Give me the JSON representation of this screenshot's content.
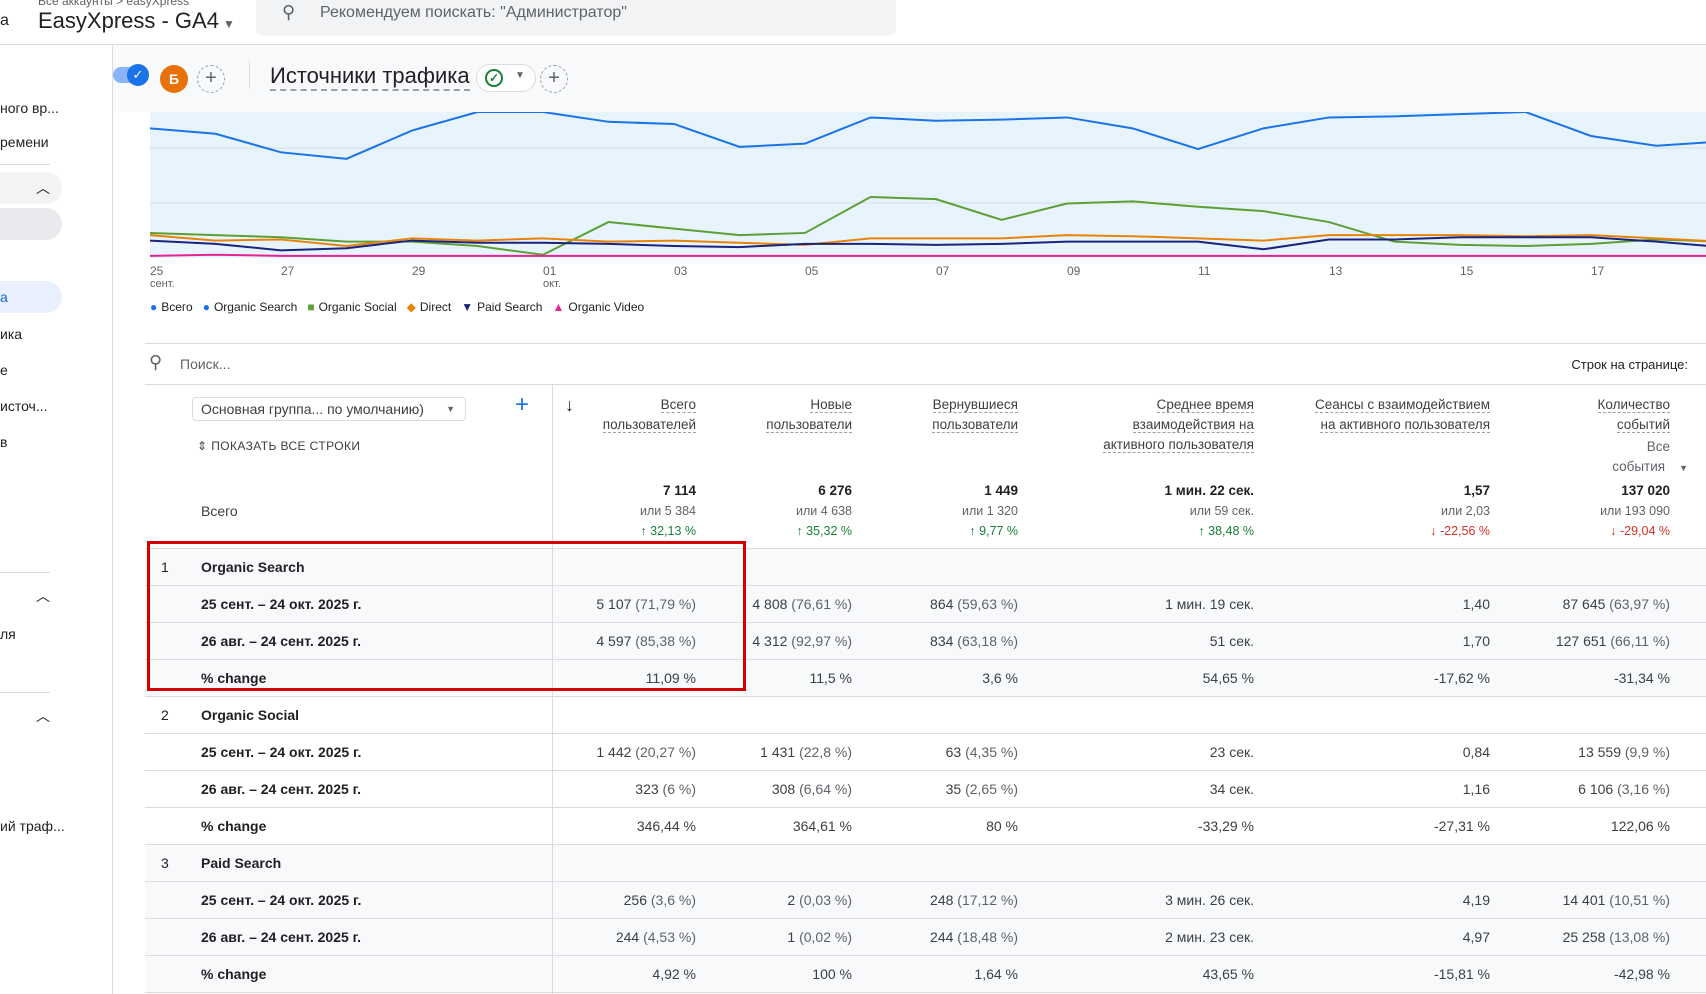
{
  "header": {
    "breadcrumb": "Все аккаунты > easyXpress",
    "property": "EasyXpress - GA4",
    "search_placeholder": "Рекомендуем поискать: \"Администратор\"",
    "left_cut": "а"
  },
  "toolbar": {
    "avatar_letter": "Б",
    "report_title": "Источники трафика",
    "plus": "+"
  },
  "sidebar": {
    "items": [
      "ного вр...",
      "ремени",
      "а",
      "ика",
      "е",
      "источ...",
      "в",
      "ля",
      "ий траф..."
    ]
  },
  "colors": {
    "total": "#1a73e8",
    "organic_search": "#1a73e8",
    "organic_social": "#5e9e35",
    "direct": "#e8830a",
    "paid_search": "#1a237e",
    "organic_video": "#e52592"
  },
  "chart_data": {
    "type": "line",
    "x": [
      "25",
      "26",
      "27",
      "28",
      "29",
      "30",
      "01",
      "02",
      "03",
      "04",
      "05",
      "06",
      "07",
      "08",
      "09",
      "10",
      "11",
      "12",
      "13",
      "14",
      "15",
      "16",
      "17",
      "18",
      "19"
    ],
    "tick_labels": [
      {
        "day": "25",
        "month": "сент."
      },
      {
        "day": "27"
      },
      {
        "day": "29"
      },
      {
        "day": "01",
        "month": "окт."
      },
      {
        "day": "03"
      },
      {
        "day": "05"
      },
      {
        "day": "07"
      },
      {
        "day": "09"
      },
      {
        "day": "11"
      },
      {
        "day": "13"
      },
      {
        "day": "15"
      },
      {
        "day": "17"
      }
    ],
    "ylim": [
      0,
      134
    ],
    "note_units": "relative (no y-axis shown)",
    "series": [
      {
        "name": "Всего",
        "key": "total",
        "values": [
          160,
          155,
          150,
          140,
          160,
          170,
          170,
          165,
          165,
          150,
          150,
          165,
          165,
          165,
          165,
          160,
          150,
          160,
          165,
          165,
          170,
          170,
          160,
          150,
          155
        ]
      },
      {
        "name": "Organic Search",
        "key": "organic_search",
        "values": [
          119,
          114,
          97,
          91,
          117,
          134,
          134,
          125,
          123,
          102,
          105,
          129,
          126,
          127,
          129,
          119,
          100,
          119,
          129,
          130,
          132,
          134,
          112,
          103,
          107
        ]
      },
      {
        "name": "Organic Social",
        "key": "organic_social",
        "values": [
          23,
          21,
          19,
          15,
          15,
          11,
          3,
          33,
          27,
          21,
          23,
          56,
          54,
          35,
          50,
          52,
          47,
          43,
          33,
          15,
          12,
          11,
          13,
          17,
          15
        ]
      },
      {
        "name": "Direct",
        "key": "direct",
        "values": [
          21,
          16,
          17,
          11,
          18,
          16,
          18,
          15,
          16,
          14,
          12,
          18,
          18,
          18,
          21,
          20,
          18,
          16,
          21,
          21,
          21,
          20,
          21,
          18,
          15
        ]
      },
      {
        "name": "Paid Search",
        "key": "paid_search",
        "values": [
          16,
          13,
          7,
          9,
          16,
          14,
          14,
          13,
          11,
          10,
          13,
          13,
          12,
          13,
          15,
          15,
          15,
          8,
          17,
          17,
          19,
          19,
          19,
          15,
          10
        ]
      },
      {
        "name": "Organic Video",
        "key": "organic_video",
        "values": [
          2,
          3,
          2,
          2,
          2,
          2,
          2,
          2,
          2,
          2,
          2,
          2,
          2,
          2,
          2,
          2,
          2,
          2,
          2,
          2,
          2,
          2,
          2,
          2,
          2
        ]
      }
    ]
  },
  "table": {
    "search_placeholder": "Поиск...",
    "rows_per_page": "Строк на странице:",
    "dimension": "Основная группа... по умолчанию)",
    "show_all": "ПОКАЗАТЬ ВСЕ СТРОКИ",
    "total_label": "Всего",
    "columns": [
      {
        "h1": "Всего",
        "h2": "пользователей",
        "total": "7 114",
        "or": "или 5 384",
        "delta": "32,13 %",
        "dir": "up"
      },
      {
        "h1": "Новые",
        "h2": "пользователи",
        "total": "6 276",
        "or": "или 4 638",
        "delta": "35,32 %",
        "dir": "up"
      },
      {
        "h1": "Вернувшиеся",
        "h2": "пользователи",
        "total": "1 449",
        "or": "или 1 320",
        "delta": "9,77 %",
        "dir": "up"
      },
      {
        "h1": "Среднее время",
        "h2": "взаимодействия на",
        "h3": "активного пользователя",
        "total": "1 мин. 22 сек.",
        "or": "или 59 сек.",
        "delta": "38,48 %",
        "dir": "up"
      },
      {
        "h1": "Сеансы с взаимодействием",
        "h2": "на активного пользователя",
        "total": "1,57",
        "or": "или 2,03",
        "delta": "-22,56 %",
        "dir": "down"
      },
      {
        "h1": "Количество",
        "h2": "событий",
        "sub": "Все события",
        "total": "137 020",
        "or": "или 193 090",
        "delta": "-29,04 %",
        "dir": "down"
      }
    ],
    "rows": [
      {
        "idx": "1",
        "label": "Organic Search",
        "cells": [
          "",
          "",
          "",
          "",
          "",
          ""
        ]
      },
      {
        "label": "25 сент. – 24 окт. 2025 г.",
        "cells": [
          [
            "5 107",
            "(71,79 %)"
          ],
          [
            "4 808",
            "(76,61 %)"
          ],
          [
            "864",
            "(59,63 %)"
          ],
          [
            "1 мин. 19 сек.",
            ""
          ],
          [
            "1,40",
            ""
          ],
          [
            "87 645",
            "(63,97 %)"
          ]
        ]
      },
      {
        "label": "26 авг. – 24 сент. 2025 г.",
        "cells": [
          [
            "4 597",
            "(85,38 %)"
          ],
          [
            "4 312",
            "(92,97 %)"
          ],
          [
            "834",
            "(63,18 %)"
          ],
          [
            "51 сек.",
            ""
          ],
          [
            "1,70",
            ""
          ],
          [
            "127 651",
            "(66,11 %)"
          ]
        ]
      },
      {
        "label": "% change",
        "cells": [
          [
            "11,09 %",
            ""
          ],
          [
            "11,5 %",
            ""
          ],
          [
            "3,6 %",
            ""
          ],
          [
            "54,65 %",
            ""
          ],
          [
            "-17,62 %",
            ""
          ],
          [
            "-31,34 %",
            ""
          ]
        ]
      },
      {
        "idx": "2",
        "label": "Organic Social",
        "cells": [
          "",
          "",
          "",
          "",
          "",
          ""
        ]
      },
      {
        "label": "25 сент. – 24 окт. 2025 г.",
        "cells": [
          [
            "1 442",
            "(20,27 %)"
          ],
          [
            "1 431",
            "(22,8 %)"
          ],
          [
            "63",
            "(4,35 %)"
          ],
          [
            "23 сек.",
            ""
          ],
          [
            "0,84",
            ""
          ],
          [
            "13 559",
            "(9,9 %)"
          ]
        ]
      },
      {
        "label": "26 авг. – 24 сент. 2025 г.",
        "cells": [
          [
            "323",
            "(6 %)"
          ],
          [
            "308",
            "(6,64 %)"
          ],
          [
            "35",
            "(2,65 %)"
          ],
          [
            "34 сек.",
            ""
          ],
          [
            "1,16",
            ""
          ],
          [
            "6 106",
            "(3,16 %)"
          ]
        ]
      },
      {
        "label": "% change",
        "cells": [
          [
            "346,44 %",
            ""
          ],
          [
            "364,61 %",
            ""
          ],
          [
            "80 %",
            ""
          ],
          [
            "-33,29 %",
            ""
          ],
          [
            "-27,31 %",
            ""
          ],
          [
            "122,06 %",
            ""
          ]
        ]
      },
      {
        "idx": "3",
        "label": "Paid Search",
        "cells": [
          "",
          "",
          "",
          "",
          "",
          ""
        ]
      },
      {
        "label": "25 сент. – 24 окт. 2025 г.",
        "cells": [
          [
            "256",
            "(3,6 %)"
          ],
          [
            "2",
            "(0,03 %)"
          ],
          [
            "248",
            "(17,12 %)"
          ],
          [
            "3 мин. 26 сек.",
            ""
          ],
          [
            "4,19",
            ""
          ],
          [
            "14 401",
            "(10,51 %)"
          ]
        ]
      },
      {
        "label": "26 авг. – 24 сент. 2025 г.",
        "cells": [
          [
            "244",
            "(4,53 %)"
          ],
          [
            "1",
            "(0,02 %)"
          ],
          [
            "244",
            "(18,48 %)"
          ],
          [
            "2 мин. 23 сек.",
            ""
          ],
          [
            "4,97",
            ""
          ],
          [
            "25 258",
            "(13,08 %)"
          ]
        ]
      },
      {
        "label": "% change",
        "cells": [
          [
            "4,92 %",
            ""
          ],
          [
            "100 %",
            ""
          ],
          [
            "1,64 %",
            ""
          ],
          [
            "43,65 %",
            ""
          ],
          [
            "-15,81 %",
            ""
          ],
          [
            "-42,98 %",
            ""
          ]
        ]
      }
    ]
  }
}
